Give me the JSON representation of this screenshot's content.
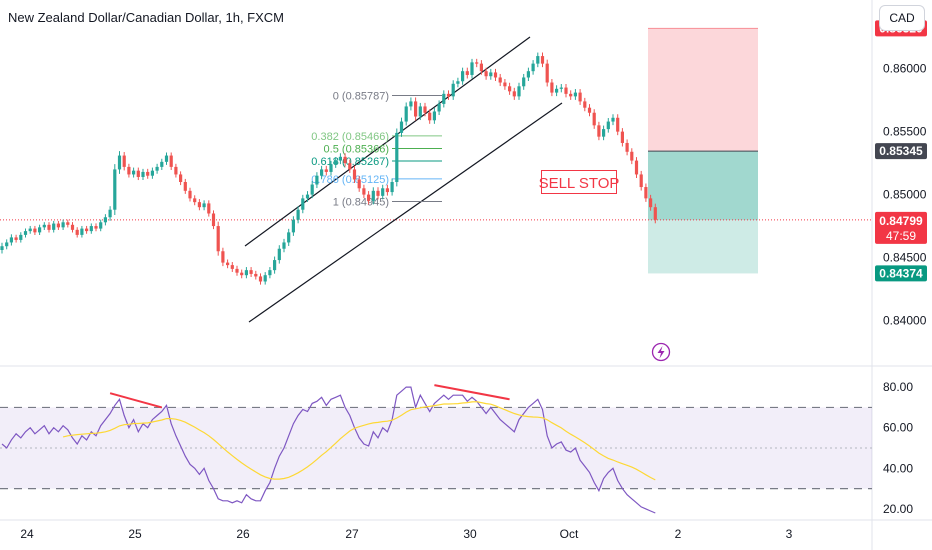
{
  "chart_data": [
    {
      "type": "candlestick",
      "title": "New Zealand Dollar/Canadian Dollar, 1h, FXCM",
      "currency": "CAD",
      "ylim": [
        0.8375,
        0.8645
      ],
      "y_ticks": [
        "0.86000",
        "0.85500",
        "0.85000",
        "0.84500",
        "0.84000"
      ],
      "x_ticks": [
        "24",
        "25",
        "26",
        "27",
        "30",
        "Oct",
        "2",
        "3"
      ],
      "price_labels": {
        "target": "0.86320",
        "entry": "0.85345",
        "current": "0.84799",
        "countdown": "47:59",
        "stop": "0.84374"
      },
      "fibonacci": [
        {
          "level": "0",
          "price": "0.85787",
          "value": 0.85787
        },
        {
          "level": "0.382",
          "price": "0.85466",
          "value": 0.85466
        },
        {
          "level": "0.5",
          "price": "0.85366",
          "value": 0.85366
        },
        {
          "level": "0.618",
          "price": "0.85267",
          "value": 0.85267
        },
        {
          "level": "0.786",
          "price": "0.85125",
          "value": 0.85125
        },
        {
          "level": "1",
          "price": "0.84945",
          "value": 0.84945
        }
      ],
      "annotation": "SELL STOP",
      "colors": {
        "up": "#26a69a",
        "down": "#ef5350",
        "current_line": "#f23645",
        "entry_label": "#434651",
        "stop_label": "#089981"
      },
      "close": [
        0.8459,
        0.8462,
        0.8466,
        0.8464,
        0.8468,
        0.8471,
        0.8473,
        0.847,
        0.8474,
        0.8476,
        0.8472,
        0.8477,
        0.8474,
        0.8478,
        0.8476,
        0.8472,
        0.8468,
        0.8473,
        0.8471,
        0.8475,
        0.8473,
        0.8478,
        0.8482,
        0.8488,
        0.852,
        0.8531,
        0.8522,
        0.8516,
        0.8519,
        0.8514,
        0.8518,
        0.8515,
        0.8519,
        0.8522,
        0.8526,
        0.8531,
        0.8522,
        0.8516,
        0.851,
        0.8503,
        0.8497,
        0.8494,
        0.849,
        0.8493,
        0.8485,
        0.8475,
        0.8455,
        0.8446,
        0.8444,
        0.8441,
        0.8438,
        0.8436,
        0.844,
        0.8437,
        0.8435,
        0.8431,
        0.8436,
        0.844,
        0.8448,
        0.8457,
        0.8462,
        0.847,
        0.848,
        0.8488,
        0.8497,
        0.85,
        0.8508,
        0.8515,
        0.852,
        0.8518,
        0.8524,
        0.8527,
        0.853,
        0.8525,
        0.852,
        0.8512,
        0.8505,
        0.85,
        0.8495,
        0.8503,
        0.8499,
        0.8505,
        0.8502,
        0.851,
        0.8549,
        0.8558,
        0.857,
        0.8574,
        0.8562,
        0.857,
        0.8565,
        0.8559,
        0.8566,
        0.8572,
        0.858,
        0.8578,
        0.8588,
        0.859,
        0.8598,
        0.8595,
        0.8605,
        0.8604,
        0.8598,
        0.8594,
        0.8597,
        0.8593,
        0.8589,
        0.8586,
        0.8582,
        0.8578,
        0.8586,
        0.8593,
        0.8598,
        0.8604,
        0.861,
        0.8604,
        0.8589,
        0.8581,
        0.8584,
        0.8585,
        0.858,
        0.8578,
        0.8581,
        0.8574,
        0.8569,
        0.8565,
        0.8555,
        0.8546,
        0.8552,
        0.8558,
        0.8561,
        0.855,
        0.8541,
        0.8534,
        0.8527,
        0.8516,
        0.8506,
        0.8497,
        0.849,
        0.848
      ],
      "volatility": [
        0.0008,
        0.0007,
        0.0007,
        0.0006,
        0.0006,
        0.0006,
        0.0006,
        0.0006,
        0.0006,
        0.0006,
        0.0006,
        0.0006,
        0.0006,
        0.0006,
        0.0006,
        0.0006,
        0.0006,
        0.0006,
        0.0006,
        0.0006,
        0.0006,
        0.0006,
        0.0007,
        0.0008,
        0.0012,
        0.001,
        0.0008,
        0.0007,
        0.0007,
        0.0007,
        0.0007,
        0.0007,
        0.0007,
        0.0007,
        0.0007,
        0.0007,
        0.0007,
        0.0007,
        0.0007,
        0.0007,
        0.0007,
        0.0007,
        0.0007,
        0.0007,
        0.0007,
        0.0007,
        0.001,
        0.0008,
        0.0007,
        0.0007,
        0.0007,
        0.0007,
        0.0007,
        0.0007,
        0.0007,
        0.0007,
        0.0007,
        0.0007,
        0.0008,
        0.0008,
        0.0008,
        0.0008,
        0.0008,
        0.0008,
        0.0008,
        0.0008,
        0.0008,
        0.0008,
        0.0008,
        0.0008,
        0.0008,
        0.0008,
        0.0008,
        0.0008,
        0.0008,
        0.0008,
        0.0008,
        0.0008,
        0.0008,
        0.0008,
        0.0008,
        0.0008,
        0.0008,
        0.0008,
        0.001,
        0.0009,
        0.0009,
        0.0009,
        0.0009,
        0.0008,
        0.0008,
        0.0008,
        0.0008,
        0.0008,
        0.0008,
        0.0008,
        0.0008,
        0.0008,
        0.0008,
        0.0008,
        0.0008,
        0.0008,
        0.0008,
        0.0008,
        0.0008,
        0.0008,
        0.0008,
        0.0008,
        0.0008,
        0.0008,
        0.0008,
        0.0008,
        0.0008,
        0.0008,
        0.0008,
        0.0008,
        0.0009,
        0.0008,
        0.0008,
        0.0008,
        0.0008,
        0.0008,
        0.0008,
        0.0008,
        0.0008,
        0.0008,
        0.0008,
        0.0008,
        0.0008,
        0.0008,
        0.0008,
        0.0008,
        0.0008,
        0.0008,
        0.0008,
        0.0008,
        0.0008,
        0.0008,
        0.0008,
        0.0008
      ]
    },
    {
      "type": "line",
      "ylim": [
        18,
        84
      ],
      "y_ticks": [
        "80.00",
        "60.00",
        "40.00",
        "20.00"
      ],
      "overbought": 70,
      "oversold": 30,
      "midline": 50,
      "divergence_color": "#f23645",
      "series": [
        {
          "color": "#7e57c2",
          "values": [
            52,
            50,
            54,
            57,
            55,
            58,
            60,
            57,
            59,
            61,
            57,
            60,
            58,
            61,
            59,
            55,
            52,
            56,
            54,
            58,
            56,
            61,
            64,
            67,
            71,
            74,
            66,
            60,
            64,
            58,
            62,
            60,
            64,
            66,
            68,
            71,
            62,
            56,
            51,
            46,
            42,
            40,
            37,
            40,
            34,
            30,
            25,
            24,
            24,
            23,
            24,
            23,
            27,
            25,
            24,
            24,
            29,
            33,
            40,
            46,
            50,
            56,
            62,
            66,
            69,
            68,
            72,
            73,
            75,
            71,
            74,
            75,
            76,
            70,
            66,
            60,
            55,
            52,
            51,
            58,
            55,
            60,
            58,
            64,
            76,
            78,
            80,
            80,
            70,
            76,
            72,
            68,
            72,
            74,
            76,
            74,
            76,
            76,
            76,
            73,
            75,
            73,
            70,
            67,
            70,
            67,
            64,
            62,
            60,
            58,
            64,
            67,
            70,
            72,
            74,
            69,
            56,
            50,
            52,
            53,
            49,
            48,
            50,
            44,
            41,
            38,
            33,
            29,
            35,
            38,
            40,
            34,
            30,
            27,
            25,
            23,
            21,
            20,
            19,
            18
          ]
        },
        {
          "color": "#fdd835",
          "values": [
            null,
            null,
            null,
            null,
            null,
            null,
            null,
            null,
            null,
            null,
            null,
            null,
            null,
            55.5,
            56.0,
            56.3,
            56.6,
            56.8,
            57.0,
            57.2,
            57.3,
            57.6,
            58.0,
            58.7,
            59.7,
            60.9,
            61.5,
            61.7,
            62.1,
            62.1,
            62.3,
            62.4,
            62.8,
            63.3,
            63.8,
            64.5,
            64.5,
            64.2,
            63.6,
            62.7,
            61.5,
            60.3,
            58.9,
            57.6,
            56.0,
            54.2,
            52.2,
            50.1,
            48.1,
            46.2,
            44.4,
            42.7,
            41.1,
            39.6,
            38.2,
            36.8,
            35.8,
            35.0,
            34.7,
            34.7,
            35.0,
            35.6,
            36.6,
            37.8,
            39.2,
            40.7,
            42.5,
            44.4,
            46.4,
            48.2,
            50.3,
            52.4,
            54.6,
            56.5,
            58.4,
            59.7,
            60.5,
            61.2,
            61.9,
            62.4,
            62.6,
            63.0,
            63.2,
            63.7,
            64.8,
            66.1,
            67.7,
            68.9,
            69.3,
            69.8,
            70.2,
            70.5,
            70.9,
            71.3,
            71.7,
            71.7,
            71.8,
            71.9,
            72.2,
            72.4,
            72.7,
            72.8,
            72.4,
            71.9,
            71.6,
            70.8,
            69.8,
            68.9,
            67.9,
            67.0,
            66.3,
            65.8,
            65.5,
            65.3,
            65.2,
            64.9,
            63.9,
            62.5,
            61.2,
            59.9,
            58.3,
            56.8,
            55.5,
            54.1,
            52.6,
            51.0,
            49.3,
            47.5,
            46.1,
            44.9,
            44.1,
            43.1,
            42.3,
            41.5,
            40.6,
            39.5,
            38.2,
            36.8,
            35.5,
            34.3
          ]
        }
      ]
    }
  ]
}
